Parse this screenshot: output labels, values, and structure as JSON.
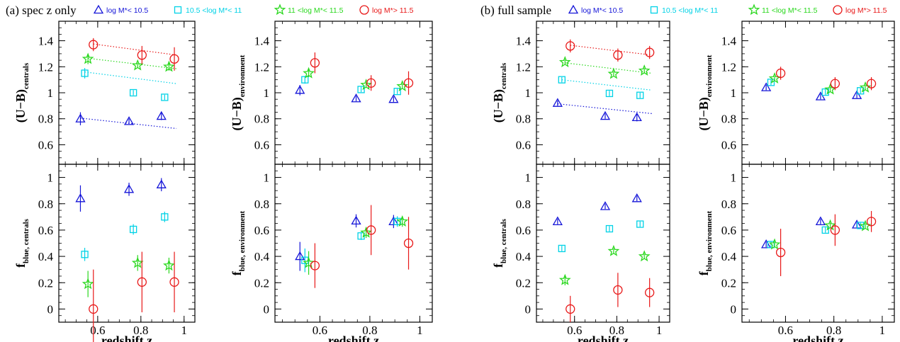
{
  "colors": {
    "low": "#1515d8",
    "mid": "#00d2e6",
    "high": "#2ad81e",
    "top": "#e81818"
  },
  "legend": [
    {
      "key": "low",
      "marker": "triangle",
      "label": "log M*< 10.5"
    },
    {
      "key": "mid",
      "marker": "square",
      "label": "10.5 <log M*< 11"
    },
    {
      "key": "high",
      "marker": "star",
      "label": "11 <log M*< 11.5"
    },
    {
      "key": "top",
      "marker": "circle",
      "label": "log M*> 11.5"
    }
  ],
  "groups": [
    {
      "title": "(a)  spec z only"
    },
    {
      "title": "(b)  full sample"
    }
  ],
  "axes": {
    "xlabel": "redshift z",
    "x_ticks": [
      0.6,
      0.8,
      1
    ],
    "color_ticks": [
      0.6,
      0.8,
      1,
      1.2,
      1.4
    ],
    "frac_ticks": [
      0,
      0.2,
      0.4,
      0.6,
      0.8,
      1
    ],
    "ylabel_color_centrals": {
      "main": "(U−B)",
      "sub": "centrals"
    },
    "ylabel_color_environment": {
      "main": "(U−B)",
      "sub": "environment"
    },
    "ylabel_frac_centrals": {
      "main": "f",
      "sub": "blue, centrals"
    },
    "ylabel_frac_environment": {
      "main": "f",
      "sub": "blue, environment"
    }
  },
  "chart_data": [
    {
      "type": "scatter",
      "group": "(a) spec z only",
      "panel": "color-centrals",
      "xlim": [
        0.42,
        1.05
      ],
      "ylim": [
        0.45,
        1.55
      ],
      "series": [
        {
          "key": "low",
          "marker": "triangle",
          "x": [
            0.52,
            0.745,
            0.895
          ],
          "y": [
            0.8,
            0.78,
            0.82
          ],
          "err": [
            0.05,
            0.02,
            0.03
          ],
          "fit": [
            [
              0.52,
              0.805
            ],
            [
              0.965,
              0.725
            ]
          ]
        },
        {
          "key": "mid",
          "marker": "square",
          "x": [
            0.54,
            0.765,
            0.91
          ],
          "y": [
            1.15,
            1.0,
            0.965
          ],
          "err": [
            0.04,
            0.02,
            0.02
          ],
          "fit": [
            [
              0.54,
              1.16
            ],
            [
              0.965,
              1.07
            ]
          ]
        },
        {
          "key": "high",
          "marker": "star",
          "x": [
            0.555,
            0.785,
            0.93
          ],
          "y": [
            1.26,
            1.21,
            1.2
          ],
          "err": [
            0.04,
            0.02,
            0.03
          ],
          "fit": [
            [
              0.555,
              1.265
            ],
            [
              0.965,
              1.185
            ]
          ]
        },
        {
          "key": "top",
          "marker": "circle",
          "x": [
            0.58,
            0.805,
            0.955
          ],
          "y": [
            1.37,
            1.29,
            1.26
          ],
          "err": [
            0.05,
            0.07,
            0.09
          ],
          "fit": [
            [
              0.58,
              1.375
            ],
            [
              0.965,
              1.29
            ]
          ]
        }
      ]
    },
    {
      "type": "scatter",
      "group": "(a) spec z only",
      "panel": "color-environment",
      "xlim": [
        0.42,
        1.05
      ],
      "ylim": [
        0.45,
        1.55
      ],
      "series": [
        {
          "key": "low",
          "marker": "triangle",
          "x": [
            0.52,
            0.745,
            0.895
          ],
          "y": [
            1.02,
            0.955,
            0.95
          ],
          "err": [
            0.04,
            0.02,
            0.02
          ]
        },
        {
          "key": "mid",
          "marker": "square",
          "x": [
            0.54,
            0.765,
            0.91
          ],
          "y": [
            1.1,
            1.025,
            1.01
          ],
          "err": [
            0.03,
            0.02,
            0.02
          ]
        },
        {
          "key": "high",
          "marker": "star",
          "x": [
            0.555,
            0.785,
            0.93
          ],
          "y": [
            1.15,
            1.06,
            1.05
          ],
          "err": [
            0.03,
            0.02,
            0.02
          ]
        },
        {
          "key": "top",
          "marker": "circle",
          "x": [
            0.58,
            0.805,
            0.955
          ],
          "y": [
            1.23,
            1.075,
            1.075
          ],
          "err": [
            0.08,
            0.06,
            0.09
          ]
        }
      ]
    },
    {
      "type": "scatter",
      "group": "(a) spec z only",
      "panel": "fraction-centrals",
      "xlim": [
        0.42,
        1.05
      ],
      "ylim": [
        -0.1,
        1.1
      ],
      "series": [
        {
          "key": "low",
          "marker": "triangle",
          "x": [
            0.52,
            0.745,
            0.895
          ],
          "y": [
            0.84,
            0.91,
            0.945
          ],
          "err": [
            0.1,
            0.05,
            0.05
          ]
        },
        {
          "key": "mid",
          "marker": "square",
          "x": [
            0.54,
            0.765,
            0.91
          ],
          "y": [
            0.415,
            0.605,
            0.7
          ],
          "err": [
            0.05,
            0.04,
            0.04
          ]
        },
        {
          "key": "high",
          "marker": "star",
          "x": [
            0.555,
            0.785,
            0.93
          ],
          "y": [
            0.19,
            0.35,
            0.33
          ],
          "err": [
            0.1,
            0.06,
            0.06
          ]
        },
        {
          "key": "top",
          "marker": "circle",
          "x": [
            0.58,
            0.805,
            0.955
          ],
          "y": [
            0.0,
            0.205,
            0.205
          ],
          "err": [
            0.3,
            0.23,
            0.23
          ]
        }
      ]
    },
    {
      "type": "scatter",
      "group": "(a) spec z only",
      "panel": "fraction-environment",
      "xlim": [
        0.42,
        1.05
      ],
      "ylim": [
        -0.1,
        1.1
      ],
      "series": [
        {
          "key": "low",
          "marker": "triangle",
          "x": [
            0.52,
            0.745,
            0.895
          ],
          "y": [
            0.4,
            0.67,
            0.665
          ],
          "err": [
            0.11,
            0.05,
            0.05
          ]
        },
        {
          "key": "mid",
          "marker": "square",
          "x": [
            0.54,
            0.765,
            0.91
          ],
          "y": [
            0.37,
            0.555,
            0.665
          ],
          "err": [
            0.09,
            0.03,
            0.04
          ]
        },
        {
          "key": "high",
          "marker": "star",
          "x": [
            0.555,
            0.785,
            0.93
          ],
          "y": [
            0.35,
            0.58,
            0.665
          ],
          "err": [
            0.09,
            0.04,
            0.04
          ]
        },
        {
          "key": "top",
          "marker": "circle",
          "x": [
            0.58,
            0.805,
            0.955
          ],
          "y": [
            0.33,
            0.6,
            0.5
          ],
          "err": [
            0.17,
            0.19,
            0.2
          ]
        }
      ]
    },
    {
      "type": "scatter",
      "group": "(b) full sample",
      "panel": "color-centrals",
      "xlim": [
        0.42,
        1.05
      ],
      "ylim": [
        0.45,
        1.55
      ],
      "series": [
        {
          "key": "low",
          "marker": "triangle",
          "x": [
            0.52,
            0.745,
            0.895
          ],
          "y": [
            0.92,
            0.82,
            0.81
          ],
          "err": [
            0.02,
            0.02,
            0.03
          ],
          "fit": [
            [
              0.52,
              0.915
            ],
            [
              0.965,
              0.84
            ]
          ]
        },
        {
          "key": "mid",
          "marker": "square",
          "x": [
            0.54,
            0.765,
            0.91
          ],
          "y": [
            1.1,
            0.995,
            0.98
          ],
          "err": [
            0.02,
            0.02,
            0.02
          ],
          "fit": [
            [
              0.54,
              1.1
            ],
            [
              0.965,
              1.02
            ]
          ]
        },
        {
          "key": "high",
          "marker": "star",
          "x": [
            0.555,
            0.785,
            0.93
          ],
          "y": [
            1.235,
            1.145,
            1.17
          ],
          "err": [
            0.02,
            0.02,
            0.02
          ],
          "fit": [
            [
              0.555,
              1.23
            ],
            [
              0.965,
              1.15
            ]
          ]
        },
        {
          "key": "top",
          "marker": "circle",
          "x": [
            0.58,
            0.805,
            0.955
          ],
          "y": [
            1.36,
            1.29,
            1.31
          ],
          "err": [
            0.05,
            0.05,
            0.05
          ],
          "fit": [
            [
              0.58,
              1.365
            ],
            [
              0.965,
              1.29
            ]
          ]
        }
      ]
    },
    {
      "type": "scatter",
      "group": "(b) full sample",
      "panel": "color-environment",
      "xlim": [
        0.42,
        1.05
      ],
      "ylim": [
        0.45,
        1.55
      ],
      "series": [
        {
          "key": "low",
          "marker": "triangle",
          "x": [
            0.52,
            0.745,
            0.895
          ],
          "y": [
            1.04,
            0.97,
            0.98
          ],
          "err": [
            0.02,
            0.02,
            0.02
          ]
        },
        {
          "key": "mid",
          "marker": "square",
          "x": [
            0.54,
            0.765,
            0.91
          ],
          "y": [
            1.08,
            1.005,
            1.015
          ],
          "err": [
            0.02,
            0.02,
            0.02
          ]
        },
        {
          "key": "high",
          "marker": "star",
          "x": [
            0.555,
            0.785,
            0.93
          ],
          "y": [
            1.11,
            1.025,
            1.04
          ],
          "err": [
            0.02,
            0.02,
            0.02
          ]
        },
        {
          "key": "top",
          "marker": "circle",
          "x": [
            0.58,
            0.805,
            0.955
          ],
          "y": [
            1.15,
            1.07,
            1.07
          ],
          "err": [
            0.05,
            0.05,
            0.05
          ]
        }
      ]
    },
    {
      "type": "scatter",
      "group": "(b) full sample",
      "panel": "fraction-centrals",
      "xlim": [
        0.42,
        1.05
      ],
      "ylim": [
        -0.1,
        1.1
      ],
      "series": [
        {
          "key": "low",
          "marker": "triangle",
          "x": [
            0.52,
            0.745,
            0.895
          ],
          "y": [
            0.665,
            0.78,
            0.84
          ],
          "err": [
            0.02,
            0.02,
            0.02
          ]
        },
        {
          "key": "mid",
          "marker": "square",
          "x": [
            0.54,
            0.765,
            0.91
          ],
          "y": [
            0.46,
            0.61,
            0.645
          ],
          "err": [
            0.02,
            0.02,
            0.02
          ]
        },
        {
          "key": "high",
          "marker": "star",
          "x": [
            0.555,
            0.785,
            0.93
          ],
          "y": [
            0.22,
            0.44,
            0.4
          ],
          "err": [
            0.04,
            0.02,
            0.02
          ]
        },
        {
          "key": "top",
          "marker": "circle",
          "x": [
            0.58,
            0.805,
            0.955
          ],
          "y": [
            0.0,
            0.145,
            0.125
          ],
          "err": [
            0.1,
            0.13,
            0.11
          ]
        }
      ]
    },
    {
      "type": "scatter",
      "group": "(b) full sample",
      "panel": "fraction-environment",
      "xlim": [
        0.42,
        1.05
      ],
      "ylim": [
        -0.1,
        1.1
      ],
      "series": [
        {
          "key": "low",
          "marker": "triangle",
          "x": [
            0.52,
            0.745,
            0.895
          ],
          "y": [
            0.49,
            0.665,
            0.64
          ],
          "err": [
            0.02,
            0.02,
            0.02
          ]
        },
        {
          "key": "mid",
          "marker": "square",
          "x": [
            0.54,
            0.765,
            0.91
          ],
          "y": [
            0.49,
            0.6,
            0.635
          ],
          "err": [
            0.02,
            0.02,
            0.02
          ]
        },
        {
          "key": "high",
          "marker": "star",
          "x": [
            0.555,
            0.785,
            0.93
          ],
          "y": [
            0.49,
            0.635,
            0.63
          ],
          "err": [
            0.02,
            0.02,
            0.02
          ]
        },
        {
          "key": "top",
          "marker": "circle",
          "x": [
            0.58,
            0.805,
            0.955
          ],
          "y": [
            0.43,
            0.6,
            0.665
          ],
          "err": [
            0.18,
            0.12,
            0.08
          ]
        }
      ]
    }
  ]
}
